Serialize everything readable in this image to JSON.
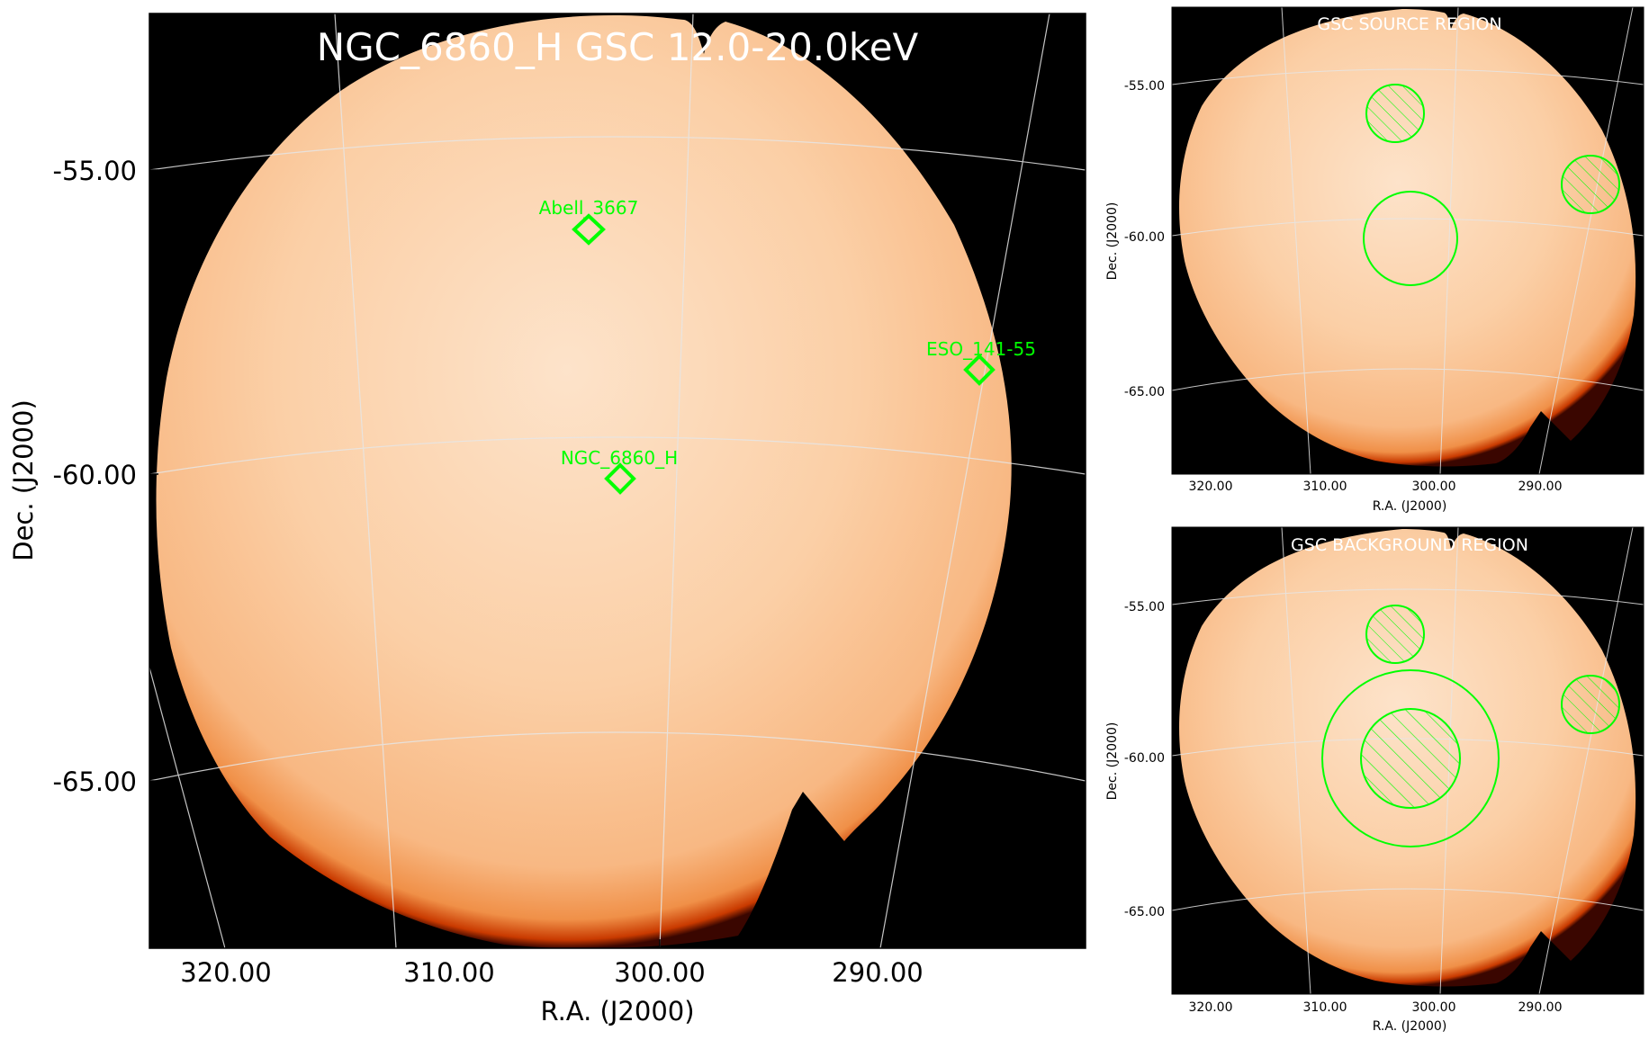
{
  "main": {
    "title": "NGC_6860_H GSC 12.0-20.0keV",
    "xlabel": "R.A. (J2000)",
    "ylabel": "Dec. (J2000)",
    "xticks": [
      "320.00",
      "310.00",
      "300.00",
      "290.00"
    ],
    "yticks": [
      "-55.00",
      "-60.00",
      "-65.00"
    ],
    "sources": [
      {
        "name": "Abell_3667"
      },
      {
        "name": "ESO_141-55"
      },
      {
        "name": "NGC_6860_H"
      }
    ]
  },
  "source_panel": {
    "title": "GSC SOURCE REGION",
    "xlabel": "R.A. (J2000)",
    "ylabel": "Dec. (J2000)",
    "xticks": [
      "320.00",
      "310.00",
      "300.00",
      "290.00"
    ],
    "yticks": [
      "-55.00",
      "-60.00",
      "-65.00"
    ]
  },
  "background_panel": {
    "title": "GSC BACKGROUND REGION",
    "xlabel": "R.A. (J2000)",
    "ylabel": "Dec. (J2000)",
    "xticks": [
      "320.00",
      "310.00",
      "300.00",
      "290.00"
    ],
    "yticks": [
      "-55.00",
      "-60.00",
      "-65.00"
    ]
  },
  "colors": {
    "image_core": "#fde0c4",
    "image_mid": "#f9b47c",
    "image_edge": "#d63a00",
    "background": "#000000",
    "region": "#00ff00",
    "grid": "#dddddd"
  }
}
